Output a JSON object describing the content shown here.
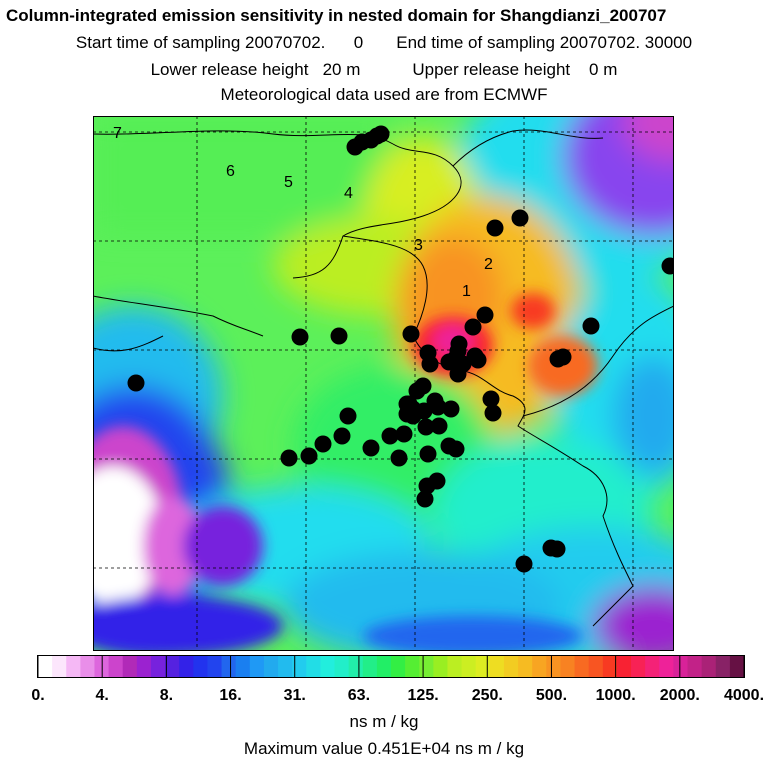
{
  "header": {
    "title": "Column-integrated emission sensitivity in nested domain for Shangdianzi_200707",
    "line2": "Start time of sampling 20070702.      0       End time of sampling 20070702. 30000",
    "line3": "Lower release height   20 m           Upper release height    0 m",
    "line4": "Meteorological data used are from ECMWF"
  },
  "map": {
    "domain_labels": [
      "1",
      "2",
      "3",
      "4",
      "5",
      "6",
      "7"
    ],
    "background_color": "#5cf05a"
  },
  "colorbar": {
    "tick_labels": [
      "0.",
      "4.",
      "8.",
      "16.",
      "31.",
      "63.",
      "125.",
      "250.",
      "500.",
      "1000.",
      "2000.",
      "4000."
    ],
    "colors": [
      "#ffffff",
      "#fce6fc",
      "#f5b8f5",
      "#e98ee9",
      "#dd66dd",
      "#cc44cc",
      "#b12ab8",
      "#9b22d0",
      "#7722dd",
      "#5522e0",
      "#3322e8",
      "#2233ee",
      "#2244ee",
      "#2266ee",
      "#1a7ff0",
      "#1f99f5",
      "#22aaee",
      "#22bbee",
      "#22ccee",
      "#22dde6",
      "#22eedd",
      "#22eec9",
      "#22eeaa",
      "#22ee88",
      "#22ee66",
      "#33ee44",
      "#55ee33",
      "#77ee33",
      "#99ee22",
      "#bbee22",
      "#ccee22",
      "#dded22",
      "#eedd22",
      "#f2cc22",
      "#f6bb22",
      "#f8a522",
      "#f89322",
      "#f88222",
      "#f86a22",
      "#f85522",
      "#f83a22",
      "#f82233",
      "#f82255",
      "#f42277",
      "#ee2299",
      "#d82299",
      "#c22288",
      "#aa2277",
      "#882266",
      "#661144"
    ],
    "unit": "ns m / kg"
  },
  "footer": {
    "max_value": "Maximum value  0.451E+04 ns m / kg"
  }
}
